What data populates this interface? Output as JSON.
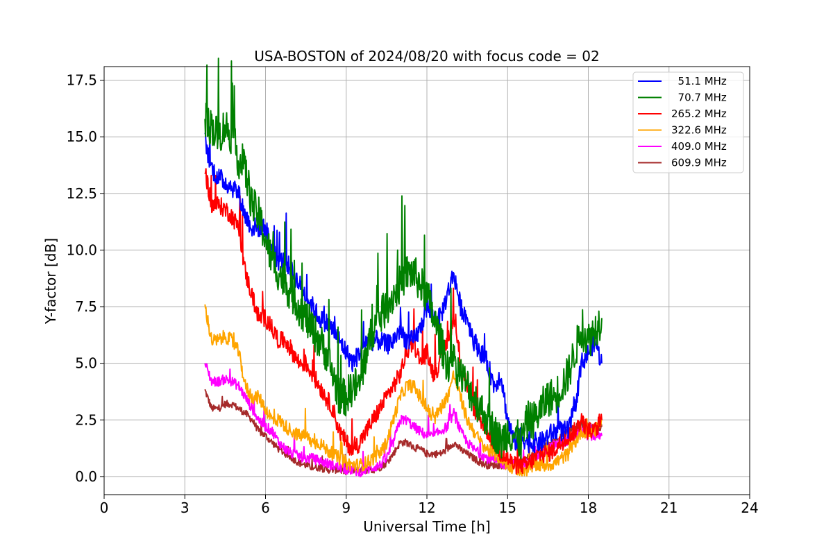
{
  "chart_data": {
    "type": "line",
    "title": "USA-BOSTON of 2024/08/20 with focus code = 02",
    "xlabel": "Universal Time [h]",
    "ylabel": "Y-factor [dB]",
    "xlim": [
      0,
      24
    ],
    "ylim": [
      -0.8,
      18.1
    ],
    "xticks": [
      0,
      3,
      6,
      9,
      12,
      15,
      18,
      21,
      24
    ],
    "xtick_labels": [
      "0",
      "3",
      "6",
      "9",
      "12",
      "15",
      "18",
      "21",
      "24"
    ],
    "yticks": [
      0,
      2.5,
      5,
      7.5,
      10,
      12.5,
      15,
      17.5
    ],
    "ytick_labels": [
      "0.0",
      "2.5",
      "5.0",
      "7.5",
      "10.0",
      "12.5",
      "15.0",
      "17.5"
    ],
    "grid": true,
    "legend_position": "top-right",
    "x": [
      3.75,
      4.0,
      4.25,
      4.5,
      4.75,
      5.0,
      5.25,
      5.5,
      5.75,
      6.0,
      6.25,
      6.5,
      6.75,
      7.0,
      7.25,
      7.5,
      7.75,
      8.0,
      8.25,
      8.5,
      8.75,
      9.0,
      9.25,
      9.5,
      9.75,
      10.0,
      10.25,
      10.5,
      10.75,
      11.0,
      11.25,
      11.5,
      11.75,
      12.0,
      12.25,
      12.5,
      12.75,
      13.0,
      13.25,
      13.5,
      13.75,
      14.0,
      14.25,
      14.5,
      14.75,
      15.0,
      15.25,
      15.5,
      15.75,
      16.0,
      16.25,
      16.5,
      16.75,
      17.0,
      17.25,
      17.5,
      17.75,
      18.0,
      18.25,
      18.5
    ],
    "series": [
      {
        "name": "  51.1 MHz",
        "color": "#0000ff",
        "values": [
          14.8,
          13.6,
          13.2,
          13.0,
          12.8,
          12.5,
          11.5,
          11.0,
          11.0,
          11.0,
          10.0,
          9.5,
          9.5,
          9.0,
          8.5,
          8.0,
          7.5,
          7.0,
          6.8,
          6.5,
          6.0,
          5.5,
          5.0,
          5.5,
          6.0,
          6.0,
          6.0,
          5.8,
          6.0,
          6.5,
          6.0,
          6.0,
          6.5,
          7.5,
          7.0,
          7.0,
          8.0,
          9.0,
          7.5,
          7.0,
          6.0,
          5.5,
          5.0,
          4.0,
          4.5,
          2.5,
          1.5,
          1.8,
          1.5,
          1.5,
          1.5,
          1.8,
          2.0,
          2.0,
          2.0,
          3.0,
          5.0,
          5.5,
          6.0,
          5.0
        ]
      },
      {
        "name": "  70.7 MHz",
        "color": "#008000",
        "values": [
          15.5,
          15.5,
          15.0,
          15.5,
          15.0,
          14.0,
          13.5,
          12.0,
          11.5,
          10.5,
          9.5,
          9.0,
          8.5,
          8.0,
          7.5,
          7.0,
          6.5,
          6.0,
          5.5,
          4.5,
          3.5,
          3.5,
          4.0,
          4.0,
          5.5,
          6.5,
          7.0,
          7.5,
          8.0,
          8.5,
          9.0,
          9.0,
          8.5,
          8.0,
          7.0,
          6.0,
          5.0,
          5.0,
          4.5,
          4.0,
          3.5,
          3.0,
          2.5,
          2.0,
          1.5,
          2.0,
          1.8,
          1.5,
          2.5,
          2.5,
          3.0,
          3.5,
          3.5,
          4.0,
          4.5,
          5.5,
          6.5,
          6.0,
          6.5,
          7.0
        ]
      },
      {
        "name": "265.2 MHz",
        "color": "#ff0000",
        "values": [
          13.5,
          12.0,
          12.0,
          11.8,
          11.5,
          11.0,
          9.0,
          8.0,
          7.0,
          7.0,
          6.5,
          6.0,
          6.0,
          5.5,
          5.0,
          5.0,
          4.5,
          4.0,
          3.5,
          3.0,
          2.0,
          1.5,
          1.2,
          1.5,
          2.0,
          2.5,
          3.0,
          3.5,
          4.0,
          4.5,
          5.5,
          6.0,
          5.0,
          5.5,
          4.5,
          5.0,
          6.0,
          7.0,
          5.0,
          4.0,
          3.0,
          2.5,
          2.0,
          1.5,
          1.0,
          0.8,
          0.5,
          0.5,
          0.5,
          0.8,
          1.0,
          1.0,
          1.2,
          1.5,
          1.8,
          2.0,
          2.5,
          2.0,
          2.0,
          2.5
        ]
      },
      {
        "name": "322.6 MHz",
        "color": "#ffa500",
        "values": [
          7.5,
          6.0,
          6.0,
          6.2,
          6.0,
          5.5,
          4.0,
          3.5,
          3.5,
          3.0,
          2.5,
          2.5,
          2.2,
          2.0,
          1.8,
          1.8,
          1.5,
          1.5,
          1.2,
          1.0,
          0.8,
          0.6,
          0.5,
          0.5,
          0.6,
          0.8,
          1.0,
          1.5,
          2.5,
          3.5,
          4.0,
          4.0,
          3.5,
          3.0,
          2.5,
          3.0,
          3.5,
          4.5,
          3.5,
          2.5,
          2.0,
          1.5,
          1.2,
          1.0,
          0.8,
          0.5,
          0.4,
          0.3,
          0.3,
          0.5,
          0.5,
          0.5,
          0.6,
          0.8,
          1.0,
          1.5,
          2.0,
          2.0,
          2.0,
          2.5
        ]
      },
      {
        "name": "409.0 MHz",
        "color": "#ff00ff",
        "values": [
          5.0,
          4.2,
          4.2,
          4.3,
          4.2,
          4.0,
          3.5,
          3.0,
          2.5,
          2.2,
          2.0,
          1.5,
          1.2,
          1.0,
          0.9,
          0.8,
          0.8,
          0.7,
          0.6,
          0.5,
          0.4,
          0.3,
          0.3,
          0.2,
          0.3,
          0.4,
          0.5,
          0.8,
          1.5,
          2.5,
          2.5,
          2.2,
          2.0,
          1.8,
          1.8,
          2.0,
          2.2,
          2.8,
          2.0,
          1.5,
          1.2,
          1.0,
          0.8,
          0.7,
          0.6,
          0.5,
          0.5,
          0.5,
          0.6,
          0.8,
          1.0,
          1.2,
          1.4,
          1.5,
          1.6,
          1.8,
          2.0,
          1.8,
          1.8,
          1.8
        ]
      },
      {
        "name": "609.9 MHz",
        "color": "#a52a2a",
        "values": [
          3.8,
          3.0,
          3.0,
          3.2,
          3.2,
          3.0,
          2.8,
          2.5,
          2.0,
          1.8,
          1.5,
          1.2,
          1.0,
          0.8,
          0.6,
          0.5,
          0.4,
          0.4,
          0.3,
          0.3,
          0.3,
          0.2,
          0.3,
          0.3,
          0.3,
          0.3,
          0.4,
          0.6,
          1.0,
          1.5,
          1.5,
          1.3,
          1.2,
          1.0,
          1.0,
          1.0,
          1.2,
          1.5,
          1.2,
          1.0,
          0.8,
          0.6,
          0.5,
          0.5,
          0.5,
          0.5,
          0.6,
          0.6,
          0.8,
          1.0,
          1.2,
          1.4,
          1.6,
          1.8,
          2.0,
          2.2,
          2.3,
          2.2,
          2.2,
          2.2
        ]
      }
    ]
  }
}
